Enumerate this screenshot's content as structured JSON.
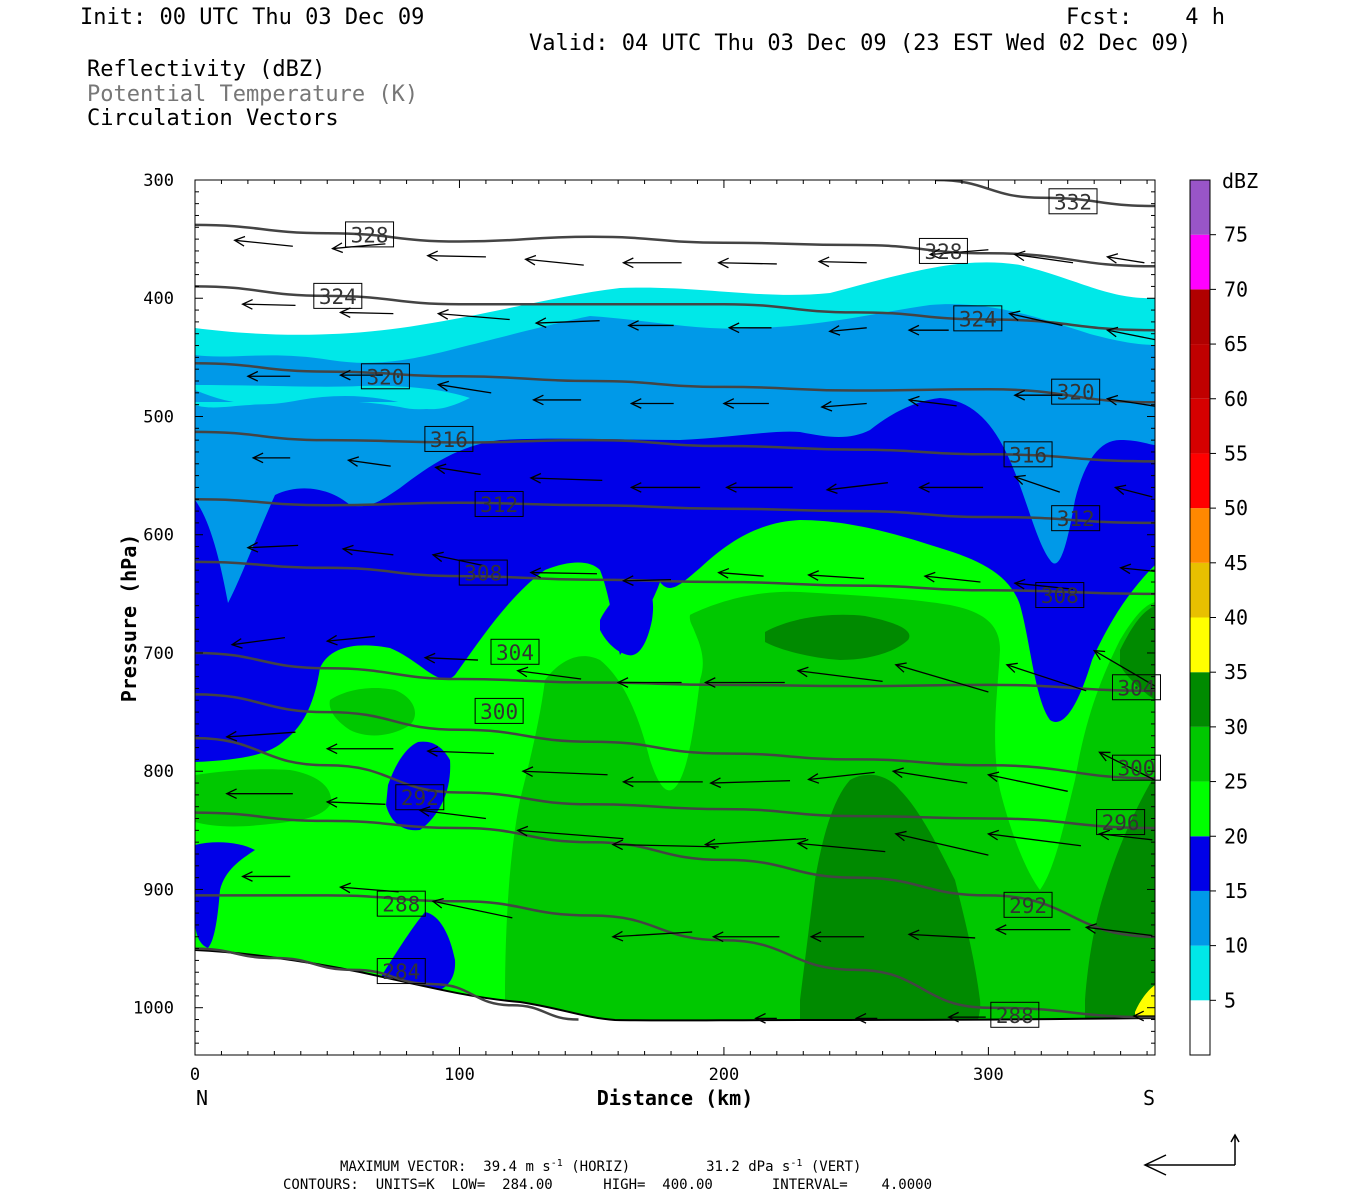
{
  "header": {
    "init": "Init: 00 UTC Thu 03 Dec 09",
    "fcst": "Fcst:    4 h",
    "valid": "Valid: 04 UTC Thu 03 Dec 09 (23 EST Wed 02 Dec 09)",
    "field1": "Reflectivity (dBZ)",
    "field2": "Potential Temperature (K)",
    "field3": "Circulation Vectors"
  },
  "footer": {
    "maxvec_label": "MAXIMUM VECTOR:",
    "horiz_value": "39.4 m s",
    "horiz_exp": "-1",
    "horiz_label": " (HORIZ)",
    "vert_value": "31.2 dPa s",
    "vert_exp": "-1",
    "vert_label": " (VERT)",
    "contours": "CONTOURS:  UNITS=K  LOW=  284.00      HIGH=  400.00       INTERVAL=    4.0000"
  },
  "colors": {
    "c5": "#00e8e8",
    "c10": "#0099e8",
    "c15": "#0000e8",
    "c20": "#00ff00",
    "c25": "#00c800",
    "c30": "#008a00",
    "c35": "#ffff00",
    "c40": "#e8c000",
    "c45": "#ff8800",
    "c50": "#ff0000",
    "c55": "#d60000",
    "c60": "#c00000",
    "c65": "#b00000",
    "c70": "#ff00ff",
    "c75": "#9955c8",
    "theta": "#444444"
  },
  "chart_data": {
    "type": "cross-section",
    "xlabel": "Distance (km)",
    "ylabel": "Pressure (hPa)",
    "x_range": [
      0,
      363
    ],
    "y_range_hPa": [
      300,
      1040
    ],
    "x_ticks": [
      "0",
      "100",
      "200",
      "300"
    ],
    "y_ticks": [
      "300",
      "400",
      "500",
      "600",
      "700",
      "800",
      "900",
      "1000"
    ],
    "x_end_labels": {
      "left": "N",
      "right": "S"
    },
    "colorbar": {
      "title": "dBZ",
      "levels": [
        "5",
        "10",
        "15",
        "20",
        "25",
        "30",
        "35",
        "40",
        "45",
        "50",
        "55",
        "60",
        "65",
        "70",
        "75"
      ]
    },
    "theta_contours": [
      {
        "label": "288",
        "x": [
          0,
          50,
          100,
          150,
          200,
          250,
          300,
          363
        ],
        "p": [
          905,
          905,
          910,
          922,
          943,
          968,
          1000,
          1008
        ]
      },
      {
        "label": "284",
        "x": [
          0,
          30,
          60,
          90,
          120,
          145
        ],
        "p": [
          950,
          958,
          968,
          980,
          998,
          1010
        ]
      },
      {
        "label": "292",
        "x": [
          0,
          50,
          100,
          150,
          200,
          250,
          300,
          363
        ],
        "p": [
          835,
          842,
          848,
          860,
          875,
          890,
          905,
          940
        ]
      },
      {
        "label": "296",
        "x": [
          0,
          50,
          100,
          150,
          200,
          250,
          300,
          363
        ],
        "p": [
          772,
          795,
          818,
          828,
          832,
          838,
          840,
          848
        ]
      },
      {
        "label": "300",
        "x": [
          0,
          50,
          100,
          150,
          200,
          250,
          300,
          363
        ],
        "p": [
          735,
          750,
          765,
          775,
          785,
          790,
          795,
          806
        ]
      },
      {
        "label": "304",
        "x": [
          0,
          50,
          100,
          150,
          200,
          250,
          300,
          363
        ],
        "p": [
          700,
          713,
          722,
          725,
          727,
          728,
          727,
          732
        ]
      },
      {
        "label": "308",
        "x": [
          0,
          50,
          100,
          150,
          200,
          250,
          300,
          363
        ],
        "p": [
          623,
          628,
          635,
          638,
          640,
          643,
          647,
          650
        ]
      },
      {
        "label": "312",
        "x": [
          0,
          50,
          100,
          150,
          200,
          250,
          300,
          363
        ],
        "p": [
          570,
          575,
          573,
          575,
          578,
          580,
          585,
          590
        ]
      },
      {
        "label": "316",
        "x": [
          0,
          50,
          100,
          150,
          200,
          250,
          300,
          363
        ],
        "p": [
          513,
          520,
          522,
          520,
          525,
          528,
          532,
          538
        ]
      },
      {
        "label": "320",
        "x": [
          0,
          50,
          100,
          150,
          200,
          250,
          300,
          363
        ],
        "p": [
          455,
          462,
          466,
          470,
          475,
          478,
          477,
          488
        ]
      },
      {
        "label": "324",
        "x": [
          0,
          50,
          100,
          150,
          200,
          250,
          300,
          363
        ],
        "p": [
          390,
          398,
          405,
          405,
          405,
          412,
          418,
          427
        ]
      },
      {
        "label": "328",
        "x": [
          0,
          50,
          100,
          150,
          200,
          250,
          300,
          363
        ],
        "p": [
          338,
          345,
          352,
          348,
          353,
          355,
          362,
          373
        ]
      },
      {
        "label": "332",
        "x": [
          280,
          320,
          363
        ],
        "p": [
          300,
          315,
          322
        ]
      }
    ],
    "contour_labels": [
      {
        "text": "332",
        "x": 332,
        "p": 318
      },
      {
        "text": "328",
        "x": 66,
        "p": 346
      },
      {
        "text": "328",
        "x": 283,
        "p": 360
      },
      {
        "text": "324",
        "x": 54,
        "p": 398
      },
      {
        "text": "324",
        "x": 296,
        "p": 417
      },
      {
        "text": "320",
        "x": 72,
        "p": 466
      },
      {
        "text": "320",
        "x": 333,
        "p": 479
      },
      {
        "text": "316",
        "x": 96,
        "p": 519
      },
      {
        "text": "316",
        "x": 315,
        "p": 532
      },
      {
        "text": "312",
        "x": 115,
        "p": 574
      },
      {
        "text": "312",
        "x": 333,
        "p": 586
      },
      {
        "text": "308",
        "x": 109,
        "p": 632
      },
      {
        "text": "308",
        "x": 327,
        "p": 651
      },
      {
        "text": "304",
        "x": 121,
        "p": 699
      },
      {
        "text": "304",
        "x": 356,
        "p": 729
      },
      {
        "text": "300",
        "x": 115,
        "p": 749
      },
      {
        "text": "300",
        "x": 356,
        "p": 797
      },
      {
        "text": "296",
        "x": 350,
        "p": 843
      },
      {
        "text": "292",
        "x": 85,
        "p": 822
      },
      {
        "text": "292",
        "x": 315,
        "p": 913
      },
      {
        "text": "288",
        "x": 78,
        "p": 912
      },
      {
        "text": "288",
        "x": 310,
        "p": 1006
      },
      {
        "text": "284",
        "x": 78,
        "p": 969
      }
    ],
    "vectors": [
      {
        "x": 15,
        "p": 351,
        "dx": 22,
        "dp": 5
      },
      {
        "x": 52,
        "p": 358,
        "dx": 20,
        "dp": -4
      },
      {
        "x": 88,
        "p": 364,
        "dx": 22,
        "dp": 1
      },
      {
        "x": 125,
        "p": 367,
        "dx": 22,
        "dp": 5
      },
      {
        "x": 162,
        "p": 370,
        "dx": 22,
        "dp": 0
      },
      {
        "x": 198,
        "p": 370,
        "dx": 22,
        "dp": 1
      },
      {
        "x": 236,
        "p": 369,
        "dx": 18,
        "dp": 1
      },
      {
        "x": 278,
        "p": 363,
        "dx": 22,
        "dp": -4
      },
      {
        "x": 310,
        "p": 363,
        "dx": 22,
        "dp": 7
      },
      {
        "x": 345,
        "p": 365,
        "dx": 14,
        "dp": 5
      },
      {
        "x": 18,
        "p": 405,
        "dx": 20,
        "dp": 1
      },
      {
        "x": 55,
        "p": 412,
        "dx": 20,
        "dp": 1
      },
      {
        "x": 92,
        "p": 413,
        "dx": 27,
        "dp": 5
      },
      {
        "x": 129,
        "p": 421,
        "dx": 24,
        "dp": -2
      },
      {
        "x": 164,
        "p": 423,
        "dx": 17,
        "dp": 0
      },
      {
        "x": 202,
        "p": 425,
        "dx": 16,
        "dp": 0
      },
      {
        "x": 240,
        "p": 428,
        "dx": 14,
        "dp": -3
      },
      {
        "x": 270,
        "p": 427,
        "dx": 15,
        "dp": 0
      },
      {
        "x": 308,
        "p": 413,
        "dx": 20,
        "dp": 10
      },
      {
        "x": 345,
        "p": 427,
        "dx": 18,
        "dp": 8
      },
      {
        "x": 20,
        "p": 466,
        "dx": 16,
        "dp": 0
      },
      {
        "x": 55,
        "p": 465,
        "dx": 16,
        "dp": 0
      },
      {
        "x": 92,
        "p": 473,
        "dx": 20,
        "dp": 7
      },
      {
        "x": 128,
        "p": 486,
        "dx": 18,
        "dp": 0
      },
      {
        "x": 165,
        "p": 489,
        "dx": 16,
        "dp": 0
      },
      {
        "x": 200,
        "p": 489,
        "dx": 17,
        "dp": 0
      },
      {
        "x": 237,
        "p": 492,
        "dx": 17,
        "dp": -3
      },
      {
        "x": 270,
        "p": 486,
        "dx": 18,
        "dp": 5
      },
      {
        "x": 310,
        "p": 482,
        "dx": 18,
        "dp": 0
      },
      {
        "x": 345,
        "p": 485,
        "dx": 20,
        "dp": 7
      },
      {
        "x": 22,
        "p": 535,
        "dx": 14,
        "dp": 0
      },
      {
        "x": 58,
        "p": 537,
        "dx": 16,
        "dp": 5
      },
      {
        "x": 91,
        "p": 543,
        "dx": 17,
        "dp": 6
      },
      {
        "x": 127,
        "p": 552,
        "dx": 27,
        "dp": 2
      },
      {
        "x": 165,
        "p": 560,
        "dx": 26,
        "dp": 0
      },
      {
        "x": 201,
        "p": 560,
        "dx": 25,
        "dp": 0
      },
      {
        "x": 239,
        "p": 562,
        "dx": 23,
        "dp": -6
      },
      {
        "x": 274,
        "p": 560,
        "dx": 24,
        "dp": 0
      },
      {
        "x": 310,
        "p": 551,
        "dx": 17,
        "dp": 13
      },
      {
        "x": 348,
        "p": 560,
        "dx": 14,
        "dp": 8
      },
      {
        "x": 20,
        "p": 611,
        "dx": 19,
        "dp": -2
      },
      {
        "x": 56,
        "p": 612,
        "dx": 19,
        "dp": 5
      },
      {
        "x": 90,
        "p": 617,
        "dx": 19,
        "dp": 9
      },
      {
        "x": 127,
        "p": 632,
        "dx": 25,
        "dp": 1
      },
      {
        "x": 162,
        "p": 639,
        "dx": 18,
        "dp": -1
      },
      {
        "x": 198,
        "p": 632,
        "dx": 17,
        "dp": 3
      },
      {
        "x": 232,
        "p": 634,
        "dx": 21,
        "dp": 3
      },
      {
        "x": 276,
        "p": 635,
        "dx": 21,
        "dp": 5
      },
      {
        "x": 310,
        "p": 641,
        "dx": 22,
        "dp": 5
      },
      {
        "x": 350,
        "p": 628,
        "dx": 13,
        "dp": 3
      },
      {
        "x": 14,
        "p": 693,
        "dx": 20,
        "dp": -6
      },
      {
        "x": 50,
        "p": 690,
        "dx": 18,
        "dp": -4
      },
      {
        "x": 87,
        "p": 704,
        "dx": 20,
        "dp": 2
      },
      {
        "x": 122,
        "p": 715,
        "dx": 24,
        "dp": 7
      },
      {
        "x": 160,
        "p": 725,
        "dx": 24,
        "dp": 0
      },
      {
        "x": 193,
        "p": 725,
        "dx": 30,
        "dp": 0
      },
      {
        "x": 228,
        "p": 715,
        "dx": 32,
        "dp": 9
      },
      {
        "x": 265,
        "p": 710,
        "dx": 35,
        "dp": 23
      },
      {
        "x": 307,
        "p": 710,
        "dx": 30,
        "dp": 22
      },
      {
        "x": 340,
        "p": 698,
        "dx": 23,
        "dp": 30
      },
      {
        "x": 12,
        "p": 771,
        "dx": 26,
        "dp": -4
      },
      {
        "x": 50,
        "p": 781,
        "dx": 25,
        "dp": 0
      },
      {
        "x": 88,
        "p": 783,
        "dx": 25,
        "dp": 2
      },
      {
        "x": 124,
        "p": 800,
        "dx": 32,
        "dp": 3
      },
      {
        "x": 162,
        "p": 809,
        "dx": 30,
        "dp": 0
      },
      {
        "x": 195,
        "p": 810,
        "dx": 30,
        "dp": -2
      },
      {
        "x": 232,
        "p": 807,
        "dx": 25,
        "dp": -6
      },
      {
        "x": 264,
        "p": 800,
        "dx": 28,
        "dp": 10
      },
      {
        "x": 300,
        "p": 803,
        "dx": 30,
        "dp": 14
      },
      {
        "x": 342,
        "p": 784,
        "dx": 25,
        "dp": 28
      },
      {
        "x": 12,
        "p": 819,
        "dx": 25,
        "dp": 0
      },
      {
        "x": 50,
        "p": 826,
        "dx": 22,
        "dp": 2
      },
      {
        "x": 85,
        "p": 833,
        "dx": 25,
        "dp": 7
      },
      {
        "x": 122,
        "p": 850,
        "dx": 40,
        "dp": 7
      },
      {
        "x": 158,
        "p": 862,
        "dx": 40,
        "dp": 2
      },
      {
        "x": 193,
        "p": 862,
        "dx": 38,
        "dp": -5
      },
      {
        "x": 228,
        "p": 861,
        "dx": 33,
        "dp": 7
      },
      {
        "x": 265,
        "p": 853,
        "dx": 35,
        "dp": 18
      },
      {
        "x": 300,
        "p": 853,
        "dx": 35,
        "dp": 10
      },
      {
        "x": 342,
        "p": 853,
        "dx": 20,
        "dp": 5
      },
      {
        "x": 18,
        "p": 889,
        "dx": 18,
        "dp": 0
      },
      {
        "x": 55,
        "p": 898,
        "dx": 22,
        "dp": 4
      },
      {
        "x": 90,
        "p": 910,
        "dx": 30,
        "dp": 14
      },
      {
        "x": 158,
        "p": 940,
        "dx": 30,
        "dp": -4
      },
      {
        "x": 196,
        "p": 940,
        "dx": 25,
        "dp": 0
      },
      {
        "x": 233,
        "p": 940,
        "dx": 20,
        "dp": 0
      },
      {
        "x": 270,
        "p": 938,
        "dx": 25,
        "dp": 3
      },
      {
        "x": 303,
        "p": 934,
        "dx": 28,
        "dp": 0
      },
      {
        "x": 337,
        "p": 932,
        "dx": 25,
        "dp": 7
      },
      {
        "x": 212,
        "p": 1009,
        "dx": 8,
        "dp": 0
      },
      {
        "x": 250,
        "p": 1009,
        "dx": 8,
        "dp": 0
      },
      {
        "x": 285,
        "p": 1008,
        "dx": 14,
        "dp": 0
      },
      {
        "x": 355,
        "p": 1007,
        "dx": 10,
        "dp": 0
      }
    ]
  }
}
